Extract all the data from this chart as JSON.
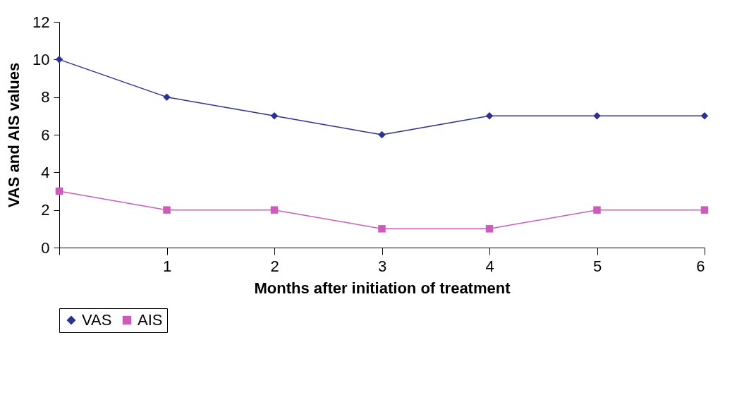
{
  "chart_data": {
    "type": "line",
    "xlabel": "Months after initiation of treatment",
    "ylabel": "VAS and AIS values",
    "x": [
      0,
      1,
      2,
      3,
      4,
      5,
      6
    ],
    "series": [
      {
        "name": "VAS",
        "color": "#2e3192",
        "marker": "diamond",
        "values": [
          10,
          8,
          7,
          6,
          7,
          7,
          7
        ]
      },
      {
        "name": "AIS",
        "color": "#cc5cbb",
        "marker": "square",
        "values": [
          3,
          2,
          2,
          1,
          1,
          2,
          2
        ]
      }
    ],
    "xlim": [
      0,
      6
    ],
    "xticks": [
      {
        "value": 0,
        "label": null
      },
      1,
      2,
      3,
      4,
      5,
      6
    ],
    "ylim": [
      0,
      12
    ],
    "yticks": [
      0,
      2,
      4,
      6,
      8,
      10,
      12
    ],
    "grid": false,
    "legend": "bottom",
    "line_style": "solid"
  }
}
